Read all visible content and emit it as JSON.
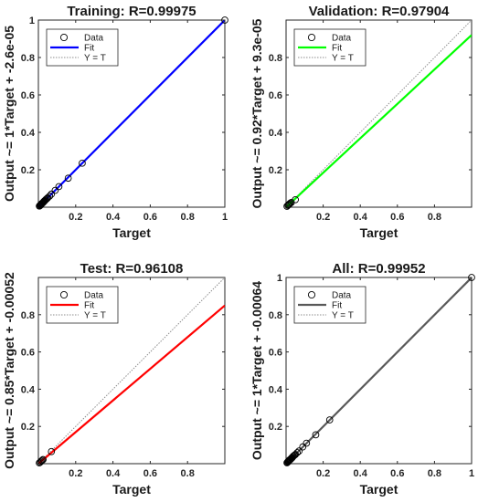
{
  "chart_data": [
    {
      "type": "scatter",
      "title": "Training: R=0.99975",
      "xlabel": "Target",
      "ylabel": "Output ~= 1*Target + -2.6e-05",
      "xlim": [
        0,
        1
      ],
      "ylim": [
        0,
        1
      ],
      "xticks": [
        "0.2",
        "0.4",
        "0.6",
        "0.8",
        "1"
      ],
      "yticks": [
        "0.2",
        "0.4",
        "0.6",
        "0.8",
        "1"
      ],
      "fit": {
        "slope": 1,
        "intercept": -2.6e-05,
        "color": "#0000ff"
      },
      "legend": {
        "data": "Data",
        "fit": "Fit",
        "identity": "Y = T",
        "position": "top-left"
      },
      "points": [
        [
          0.005,
          0.006
        ],
        [
          0.008,
          0.007
        ],
        [
          0.01,
          0.011
        ],
        [
          0.012,
          0.012
        ],
        [
          0.014,
          0.013
        ],
        [
          0.016,
          0.017
        ],
        [
          0.018,
          0.019
        ],
        [
          0.02,
          0.021
        ],
        [
          0.022,
          0.022
        ],
        [
          0.025,
          0.025
        ],
        [
          0.028,
          0.028
        ],
        [
          0.03,
          0.031
        ],
        [
          0.033,
          0.033
        ],
        [
          0.036,
          0.037
        ],
        [
          0.04,
          0.041
        ],
        [
          0.045,
          0.045
        ],
        [
          0.05,
          0.05
        ],
        [
          0.06,
          0.059
        ],
        [
          0.07,
          0.07
        ],
        [
          0.09,
          0.09
        ],
        [
          0.11,
          0.11
        ],
        [
          0.16,
          0.155
        ],
        [
          0.235,
          0.235
        ],
        [
          1.0,
          1.0
        ]
      ]
    },
    {
      "type": "scatter",
      "title": "Validation: R=0.97904",
      "xlabel": "Target",
      "ylabel": "Output ~= 0.92*Target + 9.3e-05",
      "xlim": [
        0,
        1
      ],
      "ylim": [
        0,
        1
      ],
      "xticks": [
        "0.2",
        "0.4",
        "0.6",
        "0.8"
      ],
      "yticks": [
        "0.2",
        "0.4",
        "0.6",
        "0.8"
      ],
      "fit": {
        "slope": 0.92,
        "intercept": 9.3e-05,
        "color": "#00ff00"
      },
      "legend": {
        "data": "Data",
        "fit": "Fit",
        "identity": "Y = T",
        "position": "top-left"
      },
      "points": [
        [
          0.005,
          0.005
        ],
        [
          0.01,
          0.01
        ],
        [
          0.014,
          0.013
        ],
        [
          0.018,
          0.017
        ],
        [
          0.022,
          0.021
        ],
        [
          0.028,
          0.025
        ],
        [
          0.05,
          0.04
        ]
      ]
    },
    {
      "type": "scatter",
      "title": "Test: R=0.96108",
      "xlabel": "Target",
      "ylabel": "Output ~= 0.85*Target + -0.00052",
      "xlim": [
        0,
        1
      ],
      "ylim": [
        0,
        1
      ],
      "xticks": [
        "0.2",
        "0.4",
        "0.6",
        "0.8"
      ],
      "yticks": [
        "0.2",
        "0.4",
        "0.6",
        "0.8"
      ],
      "fit": {
        "slope": 0.85,
        "intercept": -0.00052,
        "color": "#ff0000"
      },
      "legend": {
        "data": "Data",
        "fit": "Fit",
        "identity": "Y = T",
        "position": "top-left"
      },
      "points": [
        [
          0.005,
          0.004
        ],
        [
          0.01,
          0.008
        ],
        [
          0.015,
          0.013
        ],
        [
          0.02,
          0.018
        ],
        [
          0.025,
          0.022
        ],
        [
          0.07,
          0.065
        ]
      ]
    },
    {
      "type": "scatter",
      "title": "All: R=0.99952",
      "xlabel": "Target",
      "ylabel": "Output ~= 1*Target + -0.00064",
      "xlim": [
        0,
        1
      ],
      "ylim": [
        0,
        1
      ],
      "xticks": [
        "0.2",
        "0.4",
        "0.6",
        "0.8",
        "1"
      ],
      "yticks": [
        "0.2",
        "0.4",
        "0.6",
        "0.8",
        "1"
      ],
      "fit": {
        "slope": 1,
        "intercept": -0.00064,
        "color": "#595959"
      },
      "legend": {
        "data": "Data",
        "fit": "Fit",
        "identity": "Y = T",
        "position": "top-left"
      },
      "points": [
        [
          0.005,
          0.005
        ],
        [
          0.008,
          0.007
        ],
        [
          0.01,
          0.011
        ],
        [
          0.012,
          0.012
        ],
        [
          0.014,
          0.013
        ],
        [
          0.016,
          0.017
        ],
        [
          0.018,
          0.019
        ],
        [
          0.02,
          0.021
        ],
        [
          0.022,
          0.022
        ],
        [
          0.025,
          0.024
        ],
        [
          0.028,
          0.028
        ],
        [
          0.03,
          0.031
        ],
        [
          0.033,
          0.032
        ],
        [
          0.036,
          0.037
        ],
        [
          0.04,
          0.041
        ],
        [
          0.045,
          0.045
        ],
        [
          0.05,
          0.049
        ],
        [
          0.06,
          0.059
        ],
        [
          0.07,
          0.068
        ],
        [
          0.09,
          0.09
        ],
        [
          0.11,
          0.11
        ],
        [
          0.16,
          0.155
        ],
        [
          0.235,
          0.235
        ],
        [
          1.0,
          1.0
        ]
      ]
    }
  ]
}
